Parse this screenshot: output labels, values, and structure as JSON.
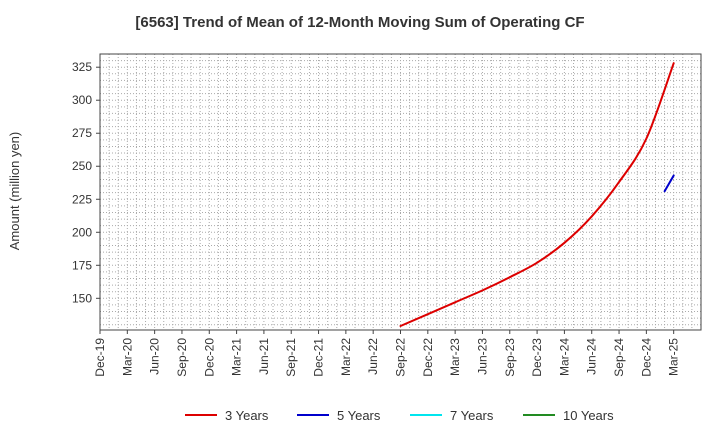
{
  "chart_data": {
    "type": "line",
    "title": "[6563]  Trend of Mean of 12-Month Moving Sum of Operating CF",
    "xlabel": "",
    "ylabel": "Amount (million yen)",
    "x_ticks": [
      "Dec-19",
      "Mar-20",
      "Jun-20",
      "Sep-20",
      "Dec-20",
      "Mar-21",
      "Jun-21",
      "Sep-21",
      "Dec-21",
      "Mar-22",
      "Jun-22",
      "Sep-22",
      "Dec-22",
      "Mar-23",
      "Jun-23",
      "Sep-23",
      "Dec-23",
      "Mar-24",
      "Jun-24",
      "Sep-24",
      "Dec-24",
      "Mar-25"
    ],
    "y_ticks": [
      150,
      175,
      200,
      225,
      250,
      275,
      300,
      325
    ],
    "ylim": [
      126,
      335
    ],
    "xlim": [
      0,
      66
    ],
    "x_unit": "months since Dec-19",
    "grid": true,
    "legend_position": "bottom",
    "series": [
      {
        "name": "3 Years",
        "color": "#dd0000",
        "x": [
          33,
          36,
          39,
          42,
          45,
          48,
          51,
          54,
          57,
          60,
          63
        ],
        "values": [
          129,
          138,
          147,
          156,
          166,
          177,
          192,
          212,
          238,
          271,
          328
        ]
      },
      {
        "name": "5 Years",
        "color": "#0000cc",
        "x": [
          62,
          63
        ],
        "values": [
          231,
          243
        ]
      },
      {
        "name": "7 Years",
        "color": "#00e5ee",
        "x": [],
        "values": []
      },
      {
        "name": "10 Years",
        "color": "#228b22",
        "x": [],
        "values": []
      }
    ]
  }
}
